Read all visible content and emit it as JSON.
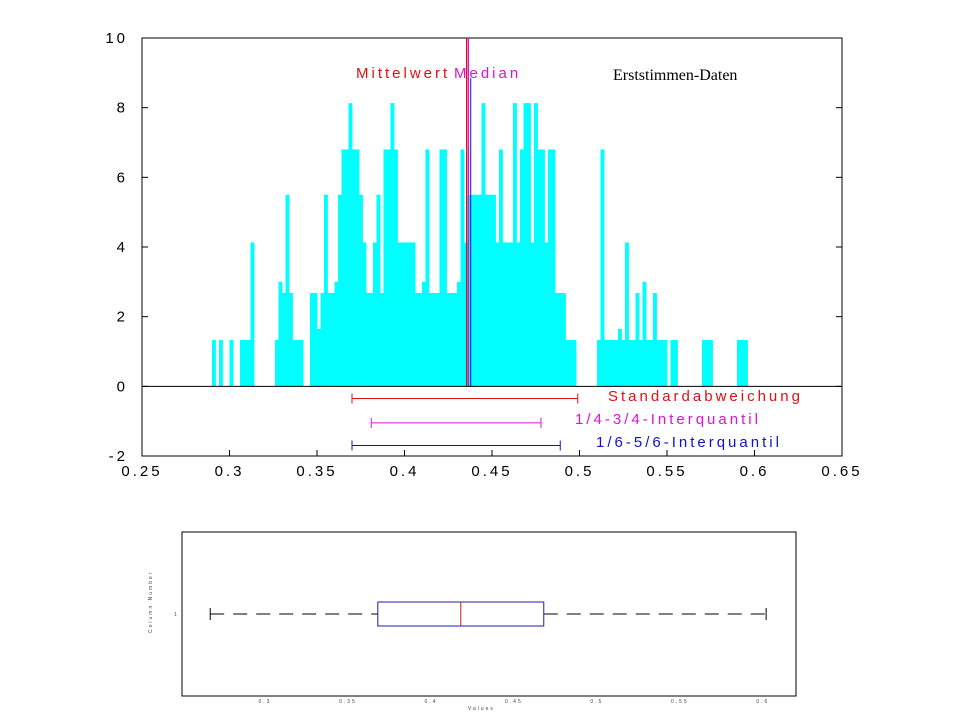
{
  "colors": {
    "hist": "#00ffff",
    "mean": "#dd1111",
    "median": "#dd11dd",
    "blue": "#1111cc",
    "axis": "#000000",
    "box": "#1c1cb4",
    "box_median": "#dd1111"
  },
  "chart_data": [
    {
      "type": "bar",
      "subtype": "histogram",
      "title": "Erststimmen-Daten",
      "xlim": [
        0.25,
        0.65
      ],
      "ylim": [
        -2,
        10
      ],
      "xticks": [
        "0.25",
        "0.3",
        "0.35",
        "0.4",
        "0.45",
        "0.5",
        "0.55",
        "0.6",
        "0.65"
      ],
      "yticks": [
        "10",
        "8",
        "6",
        "4",
        "2",
        "0",
        "-2"
      ],
      "bin_width": 0.002,
      "bins": [
        [
          0.29,
          1.33
        ],
        [
          0.294,
          1.33
        ],
        [
          0.3,
          1.33
        ],
        [
          0.306,
          1.33
        ],
        [
          0.308,
          1.33
        ],
        [
          0.31,
          1.33
        ],
        [
          0.312,
          4.13
        ],
        [
          0.326,
          1.33
        ],
        [
          0.328,
          3.0
        ],
        [
          0.33,
          2.68
        ],
        [
          0.332,
          5.5
        ],
        [
          0.334,
          2.68
        ],
        [
          0.336,
          1.33
        ],
        [
          0.338,
          1.33
        ],
        [
          0.34,
          1.33
        ],
        [
          0.346,
          2.68
        ],
        [
          0.348,
          2.68
        ],
        [
          0.35,
          1.65
        ],
        [
          0.352,
          2.68
        ],
        [
          0.354,
          5.5
        ],
        [
          0.356,
          2.68
        ],
        [
          0.358,
          2.68
        ],
        [
          0.36,
          3.0
        ],
        [
          0.362,
          5.5
        ],
        [
          0.364,
          6.8
        ],
        [
          0.366,
          6.8
        ],
        [
          0.368,
          8.13
        ],
        [
          0.37,
          6.8
        ],
        [
          0.372,
          6.8
        ],
        [
          0.374,
          5.5
        ],
        [
          0.376,
          4.13
        ],
        [
          0.378,
          2.68
        ],
        [
          0.38,
          2.68
        ],
        [
          0.382,
          4.13
        ],
        [
          0.384,
          5.5
        ],
        [
          0.386,
          2.68
        ],
        [
          0.388,
          6.8
        ],
        [
          0.39,
          6.8
        ],
        [
          0.392,
          8.13
        ],
        [
          0.394,
          6.8
        ],
        [
          0.396,
          4.13
        ],
        [
          0.398,
          4.13
        ],
        [
          0.4,
          4.13
        ],
        [
          0.402,
          4.13
        ],
        [
          0.404,
          4.13
        ],
        [
          0.406,
          2.68
        ],
        [
          0.408,
          2.68
        ],
        [
          0.41,
          3.0
        ],
        [
          0.412,
          6.8
        ],
        [
          0.414,
          2.68
        ],
        [
          0.416,
          2.68
        ],
        [
          0.418,
          2.68
        ],
        [
          0.42,
          6.8
        ],
        [
          0.422,
          6.8
        ],
        [
          0.424,
          2.68
        ],
        [
          0.426,
          2.68
        ],
        [
          0.428,
          2.68
        ],
        [
          0.43,
          3.0
        ],
        [
          0.432,
          6.8
        ],
        [
          0.434,
          4.13
        ],
        [
          0.436,
          5.5
        ],
        [
          0.438,
          5.5
        ],
        [
          0.44,
          5.5
        ],
        [
          0.442,
          5.5
        ],
        [
          0.444,
          8.13
        ],
        [
          0.446,
          5.5
        ],
        [
          0.448,
          5.5
        ],
        [
          0.45,
          5.5
        ],
        [
          0.452,
          4.13
        ],
        [
          0.454,
          6.8
        ],
        [
          0.456,
          4.13
        ],
        [
          0.458,
          4.13
        ],
        [
          0.46,
          4.13
        ],
        [
          0.462,
          8.13
        ],
        [
          0.464,
          4.13
        ],
        [
          0.466,
          6.8
        ],
        [
          0.468,
          8.13
        ],
        [
          0.47,
          8.13
        ],
        [
          0.472,
          4.13
        ],
        [
          0.474,
          8.13
        ],
        [
          0.476,
          6.8
        ],
        [
          0.478,
          6.8
        ],
        [
          0.48,
          4.13
        ],
        [
          0.482,
          6.8
        ],
        [
          0.484,
          6.8
        ],
        [
          0.486,
          2.68
        ],
        [
          0.488,
          2.68
        ],
        [
          0.49,
          2.68
        ],
        [
          0.492,
          1.33
        ],
        [
          0.494,
          1.33
        ],
        [
          0.496,
          1.33
        ],
        [
          0.51,
          1.33
        ],
        [
          0.512,
          6.8
        ],
        [
          0.514,
          1.33
        ],
        [
          0.516,
          1.33
        ],
        [
          0.518,
          1.33
        ],
        [
          0.52,
          1.33
        ],
        [
          0.522,
          1.65
        ],
        [
          0.524,
          1.33
        ],
        [
          0.526,
          4.13
        ],
        [
          0.528,
          1.33
        ],
        [
          0.53,
          1.33
        ],
        [
          0.532,
          2.68
        ],
        [
          0.534,
          1.33
        ],
        [
          0.536,
          3.0
        ],
        [
          0.538,
          1.33
        ],
        [
          0.54,
          1.33
        ],
        [
          0.542,
          2.68
        ],
        [
          0.544,
          1.33
        ],
        [
          0.546,
          1.33
        ],
        [
          0.548,
          1.33
        ],
        [
          0.552,
          1.33
        ],
        [
          0.554,
          1.33
        ],
        [
          0.57,
          1.33
        ],
        [
          0.572,
          1.33
        ],
        [
          0.574,
          1.33
        ],
        [
          0.59,
          1.33
        ],
        [
          0.592,
          1.33
        ],
        [
          0.594,
          1.33
        ]
      ],
      "reference_lines": [
        {
          "label": "Mittelwert",
          "x": 0.4355,
          "color": "#dd1111"
        },
        {
          "label": "Median",
          "x": 0.4365,
          "color": "#dd11dd"
        }
      ],
      "intervals": [
        {
          "label": "Standardabweichung",
          "low": 0.37,
          "high": 0.499,
          "y": -0.35,
          "color": "#dd1111"
        },
        {
          "label": "1/4-3/4-Interquantil",
          "low": 0.381,
          "high": 0.478,
          "y": -1.05,
          "color": "#dd11dd"
        },
        {
          "label": "1/6-5/6-Interquantil",
          "low": 0.37,
          "high": 0.489,
          "y": -1.7,
          "color": "#1111cc"
        }
      ]
    },
    {
      "type": "boxplot",
      "orientation": "horizontal",
      "xlim": [
        0.25,
        0.62
      ],
      "ylabel": "Column Number",
      "xlabel": "Values",
      "category": "1",
      "xticks": [
        "0.3",
        "0.35",
        "0.4",
        "0.45",
        "0.5",
        "0.55",
        "0.6"
      ],
      "whisker_low": 0.267,
      "q1": 0.368,
      "median": 0.418,
      "q3": 0.468,
      "whisker_high": 0.602
    }
  ]
}
